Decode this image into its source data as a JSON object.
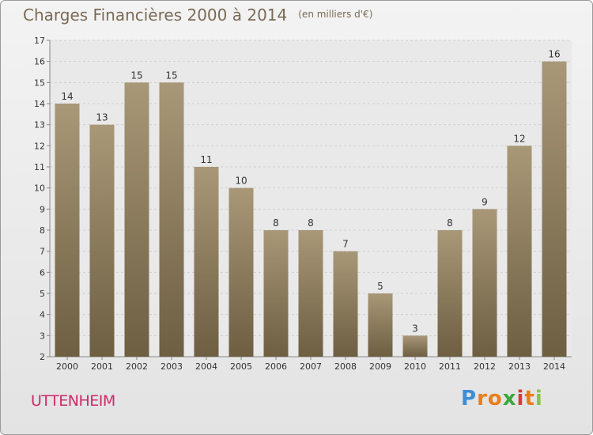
{
  "title": "Charges Financières 2000 à 2014",
  "unit": "(en milliers d'€)",
  "commune": "UTTENHEIM",
  "brand": {
    "letters": [
      "P",
      "r",
      "o",
      "x",
      "i",
      "t",
      "i"
    ],
    "colors": [
      "#3a8fd8",
      "#e87e1c",
      "#e87e1c",
      "#3aa83a",
      "#d83a3a",
      "#e87e1c",
      "#8bc34a"
    ]
  },
  "chart_data": {
    "type": "bar",
    "title": "Charges Financières 2000 à 2014",
    "subtitle": "(en milliers d'€)",
    "categories": [
      "2000",
      "2001",
      "2002",
      "2003",
      "2004",
      "2005",
      "2006",
      "2007",
      "2008",
      "2009",
      "2010",
      "2011",
      "2012",
      "2013",
      "2014"
    ],
    "values": [
      14,
      13,
      15,
      15,
      11,
      10,
      8,
      8,
      7,
      5,
      3,
      8,
      9,
      12,
      16
    ],
    "ylim": [
      2,
      17
    ],
    "yticks": [
      2,
      3,
      4,
      5,
      6,
      7,
      8,
      9,
      10,
      11,
      12,
      13,
      14,
      15,
      16,
      17
    ],
    "grid": true,
    "bar_color_top": "#a89878",
    "bar_color_bottom": "#6e5e42"
  }
}
